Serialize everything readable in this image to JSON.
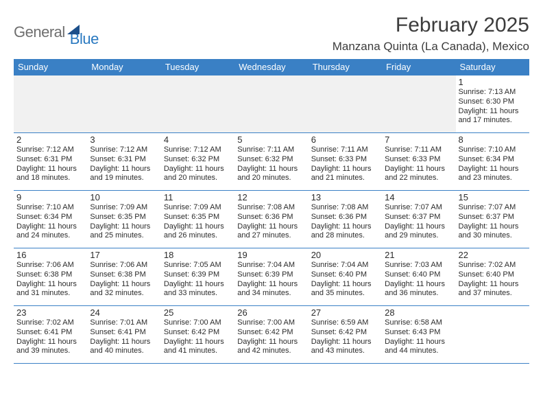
{
  "brand": {
    "text1": "General",
    "text2": "Blue"
  },
  "title": "February 2025",
  "location": "Manzana Quinta (La Canada), Mexico",
  "colors": {
    "header_bg": "#3a80c5",
    "header_fg": "#ffffff",
    "rule": "#3a80c5",
    "blank_bg": "#f1f1f1",
    "text": "#2b2b2b",
    "logo_gray": "#6e6e6e",
    "logo_blue": "#2a79c0",
    "logo_triangle": "#1c4f8a"
  },
  "day_names": [
    "Sunday",
    "Monday",
    "Tuesday",
    "Wednesday",
    "Thursday",
    "Friday",
    "Saturday"
  ],
  "weeks": [
    [
      null,
      null,
      null,
      null,
      null,
      null,
      {
        "n": "1",
        "sunrise": "7:13 AM",
        "sunset": "6:30 PM",
        "daylight": "11 hours and 17 minutes."
      }
    ],
    [
      {
        "n": "2",
        "sunrise": "7:12 AM",
        "sunset": "6:31 PM",
        "daylight": "11 hours and 18 minutes."
      },
      {
        "n": "3",
        "sunrise": "7:12 AM",
        "sunset": "6:31 PM",
        "daylight": "11 hours and 19 minutes."
      },
      {
        "n": "4",
        "sunrise": "7:12 AM",
        "sunset": "6:32 PM",
        "daylight": "11 hours and 20 minutes."
      },
      {
        "n": "5",
        "sunrise": "7:11 AM",
        "sunset": "6:32 PM",
        "daylight": "11 hours and 20 minutes."
      },
      {
        "n": "6",
        "sunrise": "7:11 AM",
        "sunset": "6:33 PM",
        "daylight": "11 hours and 21 minutes."
      },
      {
        "n": "7",
        "sunrise": "7:11 AM",
        "sunset": "6:33 PM",
        "daylight": "11 hours and 22 minutes."
      },
      {
        "n": "8",
        "sunrise": "7:10 AM",
        "sunset": "6:34 PM",
        "daylight": "11 hours and 23 minutes."
      }
    ],
    [
      {
        "n": "9",
        "sunrise": "7:10 AM",
        "sunset": "6:34 PM",
        "daylight": "11 hours and 24 minutes."
      },
      {
        "n": "10",
        "sunrise": "7:09 AM",
        "sunset": "6:35 PM",
        "daylight": "11 hours and 25 minutes."
      },
      {
        "n": "11",
        "sunrise": "7:09 AM",
        "sunset": "6:35 PM",
        "daylight": "11 hours and 26 minutes."
      },
      {
        "n": "12",
        "sunrise": "7:08 AM",
        "sunset": "6:36 PM",
        "daylight": "11 hours and 27 minutes."
      },
      {
        "n": "13",
        "sunrise": "7:08 AM",
        "sunset": "6:36 PM",
        "daylight": "11 hours and 28 minutes."
      },
      {
        "n": "14",
        "sunrise": "7:07 AM",
        "sunset": "6:37 PM",
        "daylight": "11 hours and 29 minutes."
      },
      {
        "n": "15",
        "sunrise": "7:07 AM",
        "sunset": "6:37 PM",
        "daylight": "11 hours and 30 minutes."
      }
    ],
    [
      {
        "n": "16",
        "sunrise": "7:06 AM",
        "sunset": "6:38 PM",
        "daylight": "11 hours and 31 minutes."
      },
      {
        "n": "17",
        "sunrise": "7:06 AM",
        "sunset": "6:38 PM",
        "daylight": "11 hours and 32 minutes."
      },
      {
        "n": "18",
        "sunrise": "7:05 AM",
        "sunset": "6:39 PM",
        "daylight": "11 hours and 33 minutes."
      },
      {
        "n": "19",
        "sunrise": "7:04 AM",
        "sunset": "6:39 PM",
        "daylight": "11 hours and 34 minutes."
      },
      {
        "n": "20",
        "sunrise": "7:04 AM",
        "sunset": "6:40 PM",
        "daylight": "11 hours and 35 minutes."
      },
      {
        "n": "21",
        "sunrise": "7:03 AM",
        "sunset": "6:40 PM",
        "daylight": "11 hours and 36 minutes."
      },
      {
        "n": "22",
        "sunrise": "7:02 AM",
        "sunset": "6:40 PM",
        "daylight": "11 hours and 37 minutes."
      }
    ],
    [
      {
        "n": "23",
        "sunrise": "7:02 AM",
        "sunset": "6:41 PM",
        "daylight": "11 hours and 39 minutes."
      },
      {
        "n": "24",
        "sunrise": "7:01 AM",
        "sunset": "6:41 PM",
        "daylight": "11 hours and 40 minutes."
      },
      {
        "n": "25",
        "sunrise": "7:00 AM",
        "sunset": "6:42 PM",
        "daylight": "11 hours and 41 minutes."
      },
      {
        "n": "26",
        "sunrise": "7:00 AM",
        "sunset": "6:42 PM",
        "daylight": "11 hours and 42 minutes."
      },
      {
        "n": "27",
        "sunrise": "6:59 AM",
        "sunset": "6:42 PM",
        "daylight": "11 hours and 43 minutes."
      },
      {
        "n": "28",
        "sunrise": "6:58 AM",
        "sunset": "6:43 PM",
        "daylight": "11 hours and 44 minutes."
      },
      null
    ]
  ],
  "labels": {
    "sunrise": "Sunrise:",
    "sunset": "Sunset:",
    "daylight": "Daylight:"
  }
}
